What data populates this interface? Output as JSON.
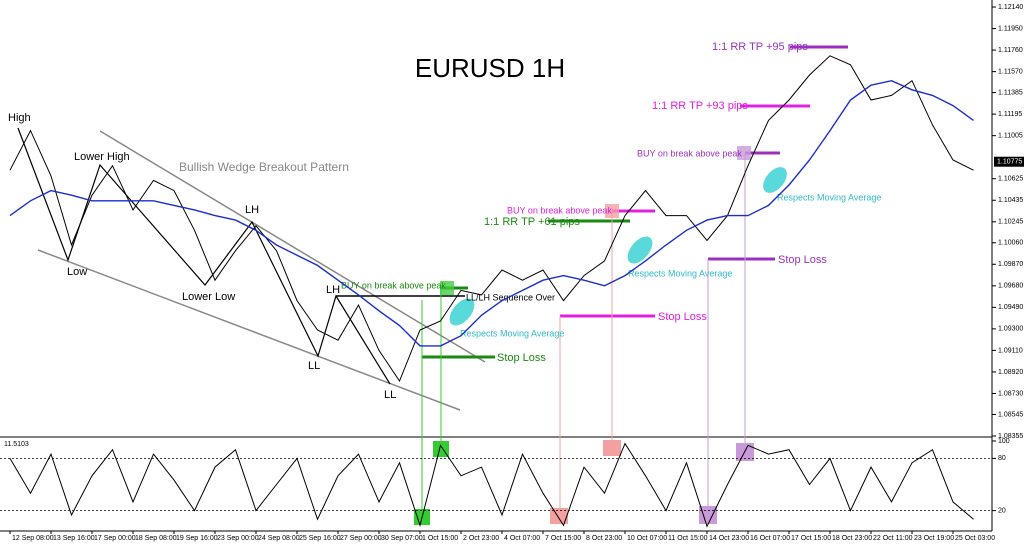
{
  "chart_data": [
    {
      "type": "line",
      "title": "EURUSD 1H",
      "series": [
        {
          "color": "#000000",
          "values": [
            1.107,
            1.1105,
            1.1065,
            1.1004,
            1.1048,
            1.1074,
            1.1035,
            1.1061,
            1.1052,
            1.1017,
            1.0973,
            1.0999,
            1.1021,
            1.0999,
            1.0955,
            1.0929,
            1.092,
            1.0951,
            1.0911,
            1.0884,
            1.0929,
            1.0937,
            1.0964,
            1.096,
            1.0982,
            1.0973,
            1.0982,
            1.0955,
            1.0977,
            1.099,
            1.103,
            1.1052,
            1.103,
            1.103,
            1.1008,
            1.103,
            1.1074,
            1.1114,
            1.1132,
            1.1154,
            1.1171,
            1.1163,
            1.1132,
            1.1136,
            1.1149,
            1.111,
            1.1079,
            1.107
          ]
        },
        {
          "color": "#1a2ecc",
          "values": [
            1.103,
            1.1043,
            1.1052,
            1.1048,
            1.1043,
            1.1043,
            1.1043,
            1.1043,
            1.1039,
            1.1035,
            1.103,
            1.1026,
            1.1017,
            1.1004,
            1.0995,
            1.0986,
            1.0973,
            1.096,
            1.0946,
            1.0933,
            1.0915,
            1.0915,
            1.0924,
            1.0942,
            1.0955,
            1.0964,
            1.0973,
            1.0977,
            1.0973,
            1.0968,
            1.0977,
            1.099,
            1.1004,
            1.1017,
            1.1026,
            1.103,
            1.103,
            1.1039,
            1.1057,
            1.1079,
            1.1105,
            1.1132,
            1.1145,
            1.1149,
            1.1141,
            1.1136,
            1.1127,
            1.1114
          ]
        }
      ],
      "ylim": [
        1.08346,
        1.12202
      ],
      "yticks": [
        {
          "value": 1.1214,
          "label": "1.12140"
        },
        {
          "value": 1.1195,
          "label": "1.11950"
        },
        {
          "value": 1.1176,
          "label": "1.11760"
        },
        {
          "value": 1.1157,
          "label": "1.11570"
        },
        {
          "value": 1.11385,
          "label": "1.11385"
        },
        {
          "value": 1.11195,
          "label": "1.11195"
        },
        {
          "value": 1.11005,
          "label": "1.11005"
        },
        {
          "value": 1.10625,
          "label": "1.10625"
        },
        {
          "value": 1.10435,
          "label": "1.10435"
        },
        {
          "value": 1.10245,
          "label": "1.10245"
        },
        {
          "value": 1.1006,
          "label": "1.10060"
        },
        {
          "value": 1.0987,
          "label": "1.09870"
        },
        {
          "value": 1.0968,
          "label": "1.09680"
        },
        {
          "value": 1.0949,
          "label": "1.09490"
        },
        {
          "value": 1.093,
          "label": "1.09300"
        },
        {
          "value": 1.0911,
          "label": "1.09110"
        },
        {
          "value": 1.0892,
          "label": "1.08920"
        },
        {
          "value": 1.0873,
          "label": "1.08730"
        },
        {
          "value": 1.08545,
          "label": "1.08545"
        },
        {
          "value": 1.08355,
          "label": "1.08355"
        }
      ],
      "last_price": 1.10775,
      "annotations": [
        "High",
        "Lower High",
        "Low",
        "Lower Low",
        "LH",
        "LH",
        "LL",
        "LL",
        "Bullish Wedge Breakout Pattern",
        "BUY on break above peak",
        "LL/LH Sequence Over",
        "Respects Moving Average",
        "Stop Loss",
        "1:1 RR TP +61 pips",
        "BUY on break above peak",
        "Stop Loss",
        "Respects Moving Average",
        "1:1 RR TP +93 pips",
        "BUY on break above peak",
        "Respects Moving Average",
        "Stop Loss",
        "1:1 RR TP +95 pips"
      ]
    },
    {
      "type": "line",
      "categories": [
        "12 Sep 08:00",
        null,
        "13 Sep 16:00",
        null,
        "17 Sep 00:00",
        null,
        "18 Sep 08:00",
        null,
        "19 Sep 16:00",
        null,
        "23 Sep 00:00",
        null,
        "24 Sep 08:00",
        null,
        "25 Sep 16:00",
        null,
        "27 Sep 00:00",
        null,
        "30 Sep 07:00",
        null,
        "1 Oct 15:00",
        null,
        "2 Oct 23:00",
        null,
        "4 Oct 07:00",
        null,
        "7 Oct 15:00",
        null,
        "8 Oct 23:00",
        null,
        "10 Oct 07:00",
        null,
        "11 Oct 15:00",
        null,
        "14 Oct 23:00",
        null,
        "16 Oct 07:00",
        null,
        "17 Oct 15:00",
        null,
        "18 Oct 23:00",
        null,
        "22 Oct 11:00",
        null,
        "23 Oct 19:00",
        null,
        "25 Oct 03:00",
        null
      ],
      "series": [
        {
          "color": "#000000",
          "values": [
            80,
            40,
            85,
            15,
            60,
            90,
            30,
            85,
            55,
            20,
            70,
            90,
            20,
            50,
            80,
            10,
            60,
            85,
            30,
            75,
            3,
            95,
            60,
            70,
            15,
            85,
            40,
            3,
            70,
            40,
            97,
            60,
            20,
            75,
            2,
            50,
            95,
            85,
            90,
            50,
            80,
            20,
            70,
            30,
            75,
            90,
            30,
            10
          ]
        }
      ],
      "ylim": [
        0,
        100
      ],
      "yticks": [
        20,
        80,
        100
      ],
      "indicator_value": 11.5103
    }
  ]
}
